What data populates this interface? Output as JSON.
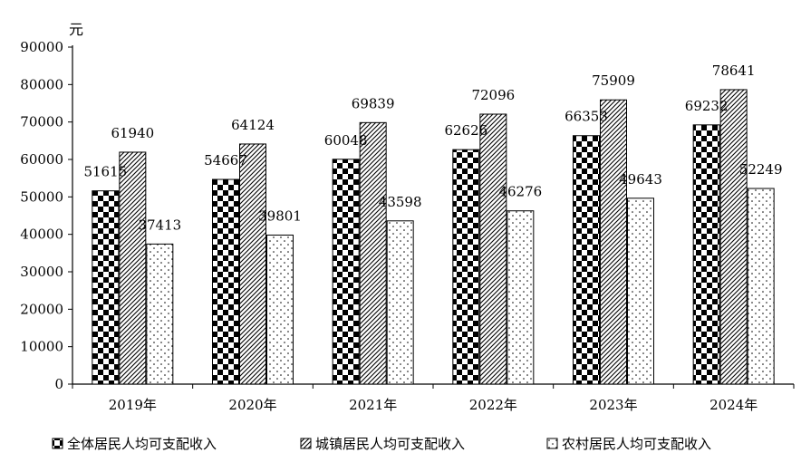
{
  "chart_data": {
    "type": "bar",
    "title": "",
    "xlabel": "",
    "ylabel": "元",
    "ylim": [
      0,
      90000
    ],
    "yticks": [
      0,
      10000,
      20000,
      30000,
      40000,
      50000,
      60000,
      70000,
      80000,
      90000
    ],
    "grid": false,
    "legend_position": "bottom",
    "categories": [
      "2019年",
      "2020年",
      "2021年",
      "2022年",
      "2023年",
      "2024年"
    ],
    "series": [
      {
        "name": "全体居民人均可支配收入",
        "values": [
          51615,
          54667,
          60048,
          62626,
          66353,
          69232
        ],
        "pattern": "checker"
      },
      {
        "name": "城镇居民人均可支配收入",
        "values": [
          61940,
          64124,
          69839,
          72096,
          75909,
          78641
        ],
        "pattern": "diagonal"
      },
      {
        "name": "农村居民人均可支配收入",
        "values": [
          37413,
          39801,
          43598,
          46276,
          49643,
          52249
        ],
        "pattern": "dots"
      }
    ],
    "colors": {
      "ink": "#000000",
      "background": "#ffffff"
    }
  }
}
